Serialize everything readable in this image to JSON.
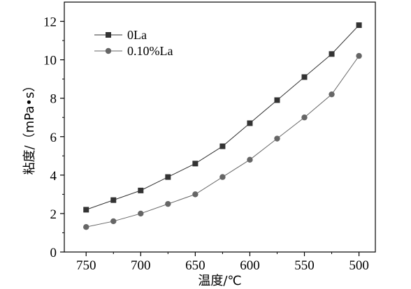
{
  "chart_data": {
    "type": "line",
    "xlabel": "温度/℃",
    "ylabel": "粘度/（mPa•s）",
    "x": [
      750,
      725,
      700,
      675,
      650,
      625,
      600,
      575,
      550,
      525,
      500
    ],
    "xlim": [
      770,
      485
    ],
    "ylim": [
      0,
      13
    ],
    "xticks": [
      750,
      700,
      650,
      600,
      550,
      500
    ],
    "yticks": [
      0,
      2,
      4,
      6,
      8,
      10,
      12
    ],
    "grid": false,
    "legend_position": "top-left",
    "series": [
      {
        "name": "0La",
        "marker": "square",
        "color": "#333333",
        "values": [
          2.2,
          2.7,
          3.2,
          3.9,
          4.6,
          5.5,
          6.7,
          7.9,
          9.1,
          10.3,
          11.8
        ]
      },
      {
        "name": "0.10%La",
        "marker": "circle",
        "color": "#666666",
        "values": [
          1.3,
          1.6,
          2.0,
          2.5,
          3.0,
          3.9,
          4.8,
          5.9,
          7.0,
          8.2,
          10.2
        ]
      }
    ]
  }
}
